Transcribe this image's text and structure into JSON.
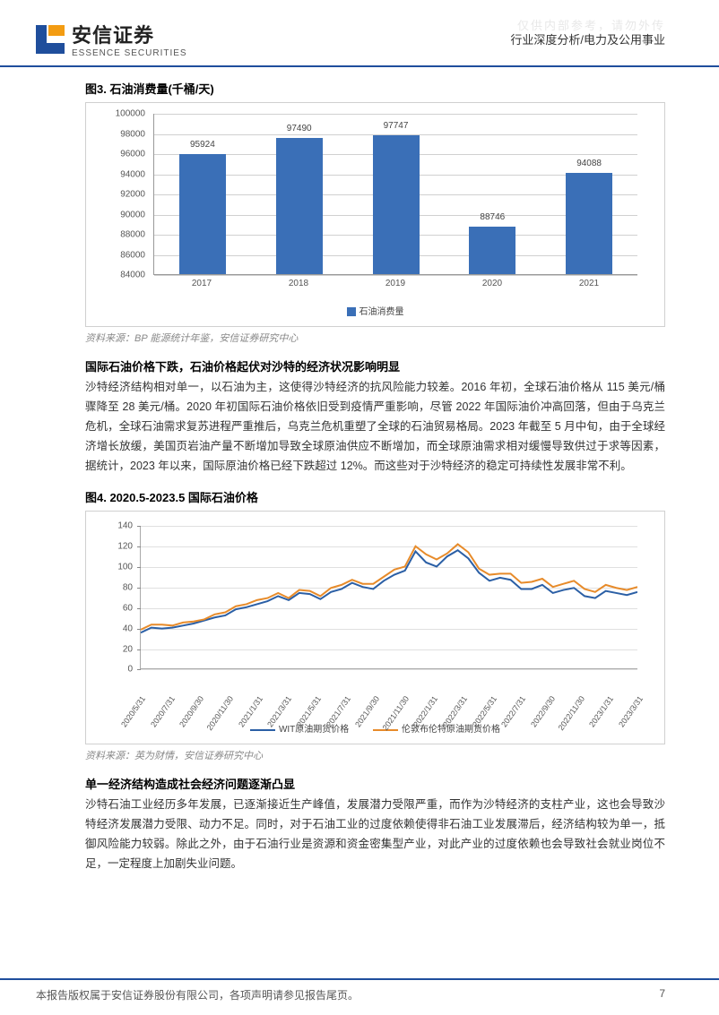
{
  "watermark": "仅供内部参考，请勿外传",
  "header": {
    "brand_cn": "安信证券",
    "brand_en": "ESSENCE SECURITIES",
    "doc_path": "行业深度分析/电力及公用事业",
    "logo_colors": {
      "orange": "#f39c12",
      "blue": "#1f4e9c"
    }
  },
  "fig3": {
    "title": "图3. 石油消费量(千桶/天)",
    "type": "bar",
    "categories": [
      "2017",
      "2018",
      "2019",
      "2020",
      "2021"
    ],
    "values": [
      95924,
      97490,
      97747,
      88746,
      94088
    ],
    "bar_color": "#3a6fb7",
    "ylim": [
      84000,
      100000
    ],
    "ytick_step": 2000,
    "label_fontsize": 10,
    "legend_label": "石油消费量",
    "source": "资料来源：BP 能源统计年鉴，安信证券研究中心"
  },
  "section1": {
    "title": "国际石油价格下跌，石油价格起伏对沙特的经济状况影响明显",
    "body": "沙特经济结构相对单一，以石油为主，这使得沙特经济的抗风险能力较差。2016 年初，全球石油价格从 115 美元/桶骤降至 28 美元/桶。2020 年初国际石油价格依旧受到疫情严重影响，尽管 2022 年国际油价冲高回落，但由于乌克兰危机，全球石油需求复苏进程严重推后，乌克兰危机重塑了全球的石油贸易格局。2023 年截至 5 月中旬，由于全球经济增长放缓，美国页岩油产量不断增加导致全球原油供应不断增加，而全球原油需求相对缓慢导致供过于求等因素，据统计，2023 年以来，国际原油价格已经下跌超过 12%。而这些对于沙特经济的稳定可持续性发展非常不利。"
  },
  "fig4": {
    "title": "图4. 2020.5-2023.5  国际石油价格",
    "type": "line",
    "ylim": [
      0,
      140
    ],
    "ytick_step": 20,
    "xlabels": [
      "2020/5/31",
      "2020/7/31",
      "2020/9/30",
      "2020/11/30",
      "2021/1/31",
      "2021/3/31",
      "2021/5/31",
      "2021/7/31",
      "2021/9/30",
      "2021/11/30",
      "2022/1/31",
      "2022/3/31",
      "2022/5/31",
      "2022/7/31",
      "2022/9/30",
      "2022/11/30",
      "2023/1/31",
      "2023/3/31"
    ],
    "series": [
      {
        "name": "WIT原油期货价格",
        "color": "#2b5fa5",
        "values": [
          35,
          40,
          39,
          40,
          42,
          44,
          47,
          50,
          52,
          58,
          60,
          63,
          66,
          71,
          67,
          74,
          73,
          68,
          75,
          78,
          84,
          80,
          78,
          86,
          92,
          96,
          115,
          104,
          100,
          110,
          116,
          108,
          94,
          86,
          89,
          87,
          78,
          78,
          82,
          74,
          77,
          79,
          71,
          69,
          76,
          74,
          72,
          75
        ]
      },
      {
        "name": "伦敦布伦特原油期货价格",
        "color": "#e78b2a",
        "values": [
          38,
          43,
          43,
          42,
          45,
          46,
          48,
          53,
          55,
          61,
          63,
          67,
          69,
          74,
          69,
          77,
          76,
          71,
          79,
          82,
          87,
          83,
          83,
          90,
          97,
          100,
          120,
          112,
          107,
          113,
          122,
          114,
          98,
          92,
          93,
          93,
          84,
          85,
          88,
          80,
          83,
          86,
          78,
          75,
          82,
          79,
          77,
          80
        ]
      }
    ],
    "source": "资料来源：英为财情，安信证券研究中心"
  },
  "section2": {
    "title": "单一经济结构造成社会经济问题逐渐凸显",
    "body": "沙特石油工业经历多年发展，已逐渐接近生产峰值，发展潜力受限严重，而作为沙特经济的支柱产业，这也会导致沙特经济发展潜力受限、动力不足。同时，对于石油工业的过度依赖使得非石油工业发展滞后，经济结构较为单一，抵御风险能力较弱。除此之外，由于石油行业是资源和资金密集型产业，对此产业的过度依赖也会导致社会就业岗位不足，一定程度上加剧失业问题。"
  },
  "footer": {
    "copyright": "本报告版权属于安信证券股份有限公司，各项声明请参见报告尾页。",
    "page": "7"
  }
}
